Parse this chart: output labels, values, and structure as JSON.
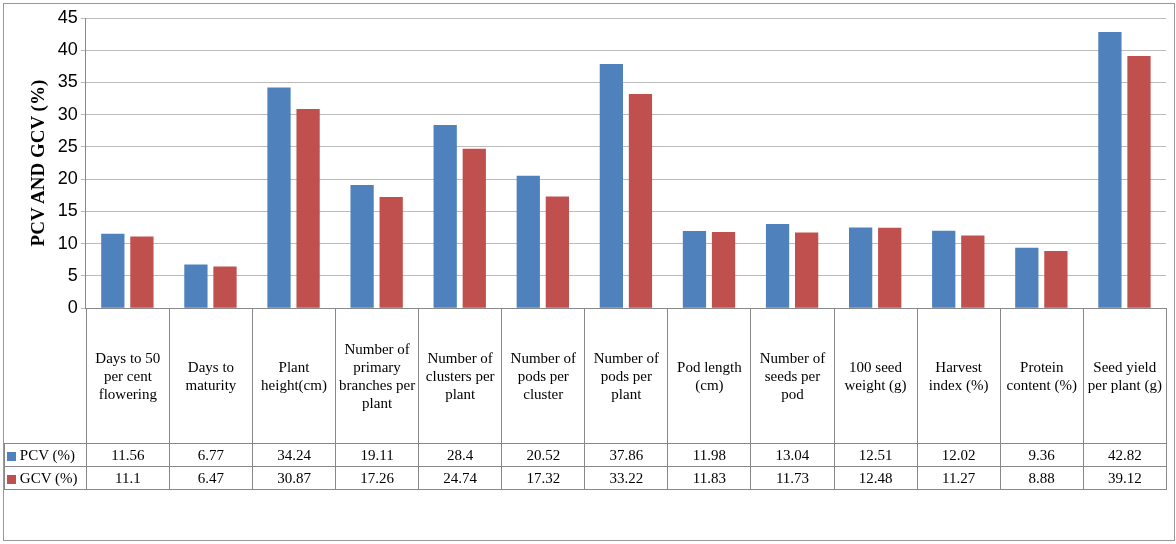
{
  "chart_data": {
    "type": "bar",
    "ylabel": "PCV AND GCV (%)",
    "categories": [
      "Days to 50 per cent flowering",
      "Days to maturity",
      "Plant height(cm)",
      "Number of primary branches per plant",
      "Number of clusters per plant",
      "Number of pods per cluster",
      "Number of pods per plant",
      "Pod length (cm)",
      "Number of seeds per pod",
      "100 seed weight (g)",
      "Harvest index (%)",
      "Protein content (%)",
      "Seed yield per plant (g)"
    ],
    "series": [
      {
        "name": "PCV (%)",
        "color": "#4f81bd",
        "values": [
          11.56,
          6.77,
          34.24,
          19.11,
          28.4,
          20.52,
          37.86,
          11.98,
          13.04,
          12.51,
          12.02,
          9.36,
          42.82
        ]
      },
      {
        "name": "GCV (%)",
        "color": "#c0504d",
        "values": [
          11.1,
          6.47,
          30.87,
          17.26,
          24.74,
          17.32,
          33.22,
          11.83,
          11.73,
          12.48,
          11.27,
          8.88,
          39.12
        ]
      }
    ],
    "ylim": [
      0,
      45
    ],
    "yticks": [
      0,
      5,
      10,
      15,
      20,
      25,
      30,
      35,
      40,
      45
    ],
    "grid": "y",
    "legend": "bottom",
    "data_labels": true,
    "tick_labels": "y"
  }
}
